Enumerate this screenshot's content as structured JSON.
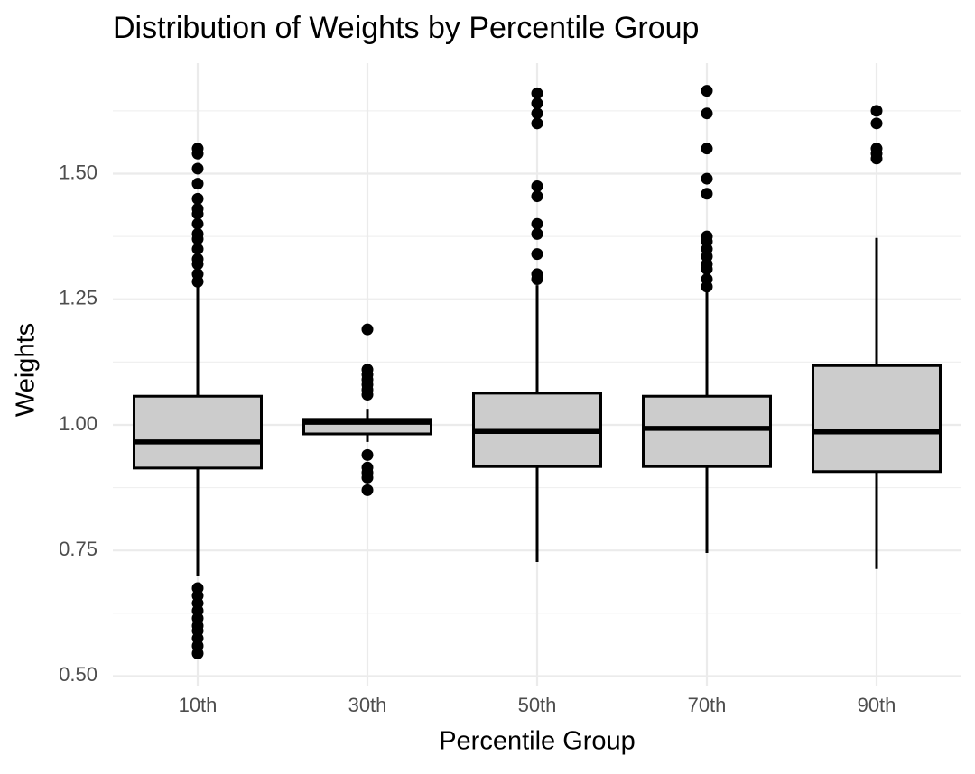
{
  "chart_data": {
    "type": "box",
    "title": "Distribution of Weights by Percentile Group",
    "x_label": "Percentile Group",
    "y_label": "Weights",
    "categories": [
      "10th",
      "30th",
      "50th",
      "70th",
      "90th"
    ],
    "boxes": [
      {
        "whislo": 0.7,
        "q1": 0.914,
        "med": 0.966,
        "q3": 1.057,
        "whishi": 1.275,
        "fliers": [
          0.545,
          0.56,
          0.575,
          0.59,
          0.6,
          0.615,
          0.63,
          0.645,
          0.66,
          0.675,
          1.285,
          1.3,
          1.32,
          1.33,
          1.35,
          1.37,
          1.38,
          1.4,
          1.42,
          1.43,
          1.45,
          1.48,
          1.51,
          1.54,
          1.55
        ]
      },
      {
        "whislo": 0.966,
        "q1": 0.982,
        "med": 1.005,
        "q3": 1.011,
        "whishi": 1.032,
        "fliers": [
          0.87,
          0.895,
          0.905,
          0.915,
          0.94,
          1.06,
          1.07,
          1.08,
          1.09,
          1.1,
          1.11,
          1.19
        ]
      },
      {
        "whislo": 0.727,
        "q1": 0.917,
        "med": 0.987,
        "q3": 1.063,
        "whishi": 1.278,
        "fliers": [
          1.29,
          1.3,
          1.34,
          1.38,
          1.4,
          1.455,
          1.475,
          1.6,
          1.62,
          1.64,
          1.66
        ]
      },
      {
        "whislo": 0.745,
        "q1": 0.917,
        "med": 0.993,
        "q3": 1.057,
        "whishi": 1.275,
        "fliers": [
          1.275,
          1.29,
          1.31,
          1.32,
          1.335,
          1.35,
          1.365,
          1.375,
          1.46,
          1.49,
          1.55,
          1.62,
          1.665
        ]
      },
      {
        "whislo": 0.713,
        "q1": 0.907,
        "med": 0.986,
        "q3": 1.118,
        "whishi": 1.372,
        "fliers": [
          1.53,
          1.54,
          1.55,
          1.6,
          1.625
        ]
      }
    ],
    "color": "#cccccc",
    "ylim": [
      0.481,
      1.72
    ],
    "yticks": [
      {
        "value": 0.5,
        "label": "0.50"
      },
      {
        "value": 0.75,
        "label": "0.75"
      },
      {
        "value": 1.0,
        "label": "1.00"
      },
      {
        "value": 1.25,
        "label": "1.25"
      },
      {
        "value": 1.5,
        "label": "1.50"
      }
    ],
    "yminor": [
      0.625,
      0.875,
      1.125,
      1.375,
      1.625
    ],
    "grid": true
  }
}
